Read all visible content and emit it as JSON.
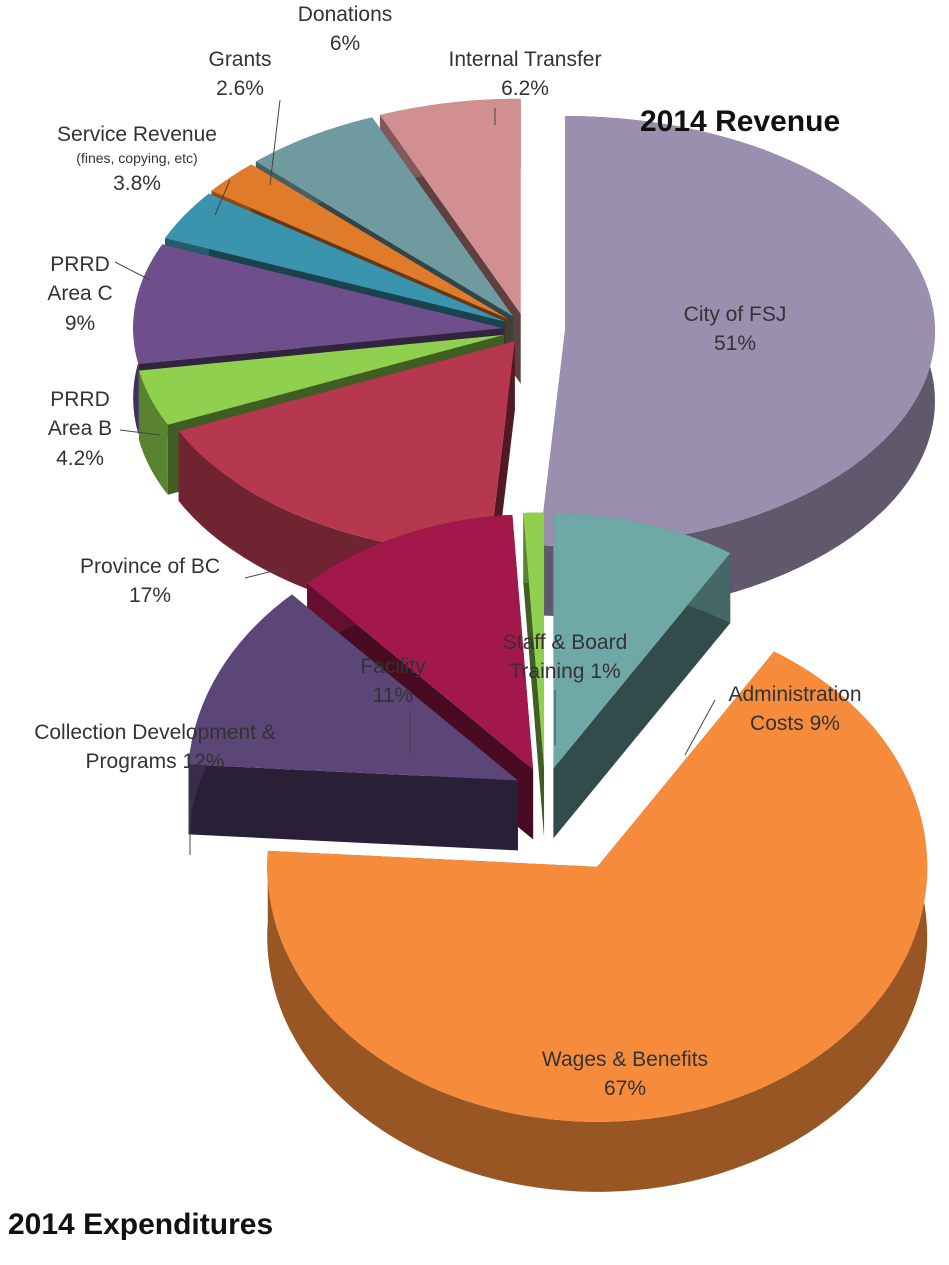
{
  "chart_data": [
    {
      "type": "pie3d",
      "title": "2014 Revenue",
      "categories": [
        "City of FSJ",
        "Province of BC",
        "PRRD Area B",
        "PRRD Area C",
        "Service Revenue",
        "Grants",
        "Donations",
        "Internal Transfer"
      ],
      "category_notes": [
        null,
        null,
        null,
        null,
        "(fines, copying, etc)",
        null,
        null,
        null
      ],
      "values": [
        51,
        17,
        4.2,
        9,
        3.8,
        2.6,
        6,
        6.2
      ],
      "value_labels": [
        "51%",
        "17%",
        "4.2%",
        "9%",
        "3.8%",
        "2.6%",
        "6%",
        "6.2%"
      ],
      "colors": [
        "#9b8fb0",
        "#b5384e",
        "#8fd14f",
        "#6e4f8c",
        "#3a94ad",
        "#e07b2c",
        "#6f9aa0",
        "#d28f91"
      ]
    },
    {
      "type": "pie3d",
      "title": "2014 Expenditures",
      "categories": [
        "Administration Costs",
        "Wages & Benefits",
        "Collection Development & Programs",
        "Facility",
        "Staff & Board Training"
      ],
      "values": [
        9,
        67,
        12,
        11,
        1
      ],
      "value_labels": [
        "9%",
        "67%",
        "12%",
        "11%",
        "1%"
      ],
      "colors": [
        "#6fa8a6",
        "#f68b3b",
        "#5c4577",
        "#a3184b",
        "#8fd14f"
      ]
    }
  ]
}
